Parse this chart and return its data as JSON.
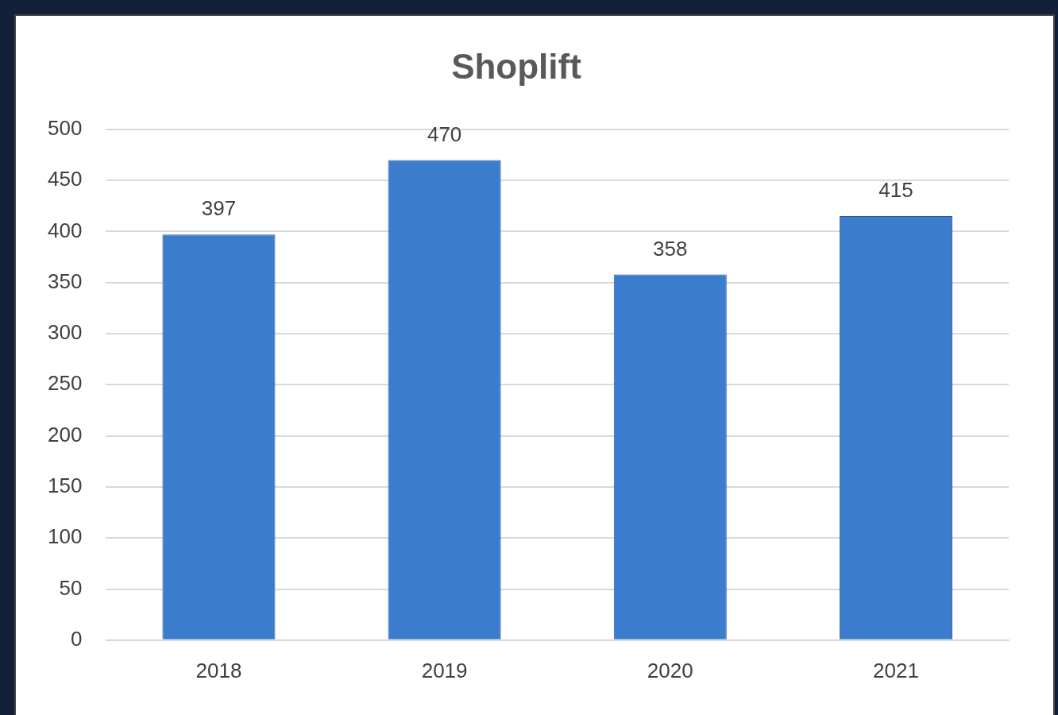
{
  "chart_data": {
    "type": "bar",
    "title": "Shoplift",
    "categories": [
      "2018",
      "2019",
      "2020",
      "2021"
    ],
    "values": [
      397,
      470,
      358,
      415
    ],
    "color": "#3b7dcc",
    "ylim": [
      0,
      500
    ],
    "yticks": [
      0,
      50,
      100,
      150,
      200,
      250,
      300,
      350,
      400,
      450,
      500
    ],
    "grid": "y",
    "data_labels": true,
    "legend": false
  }
}
